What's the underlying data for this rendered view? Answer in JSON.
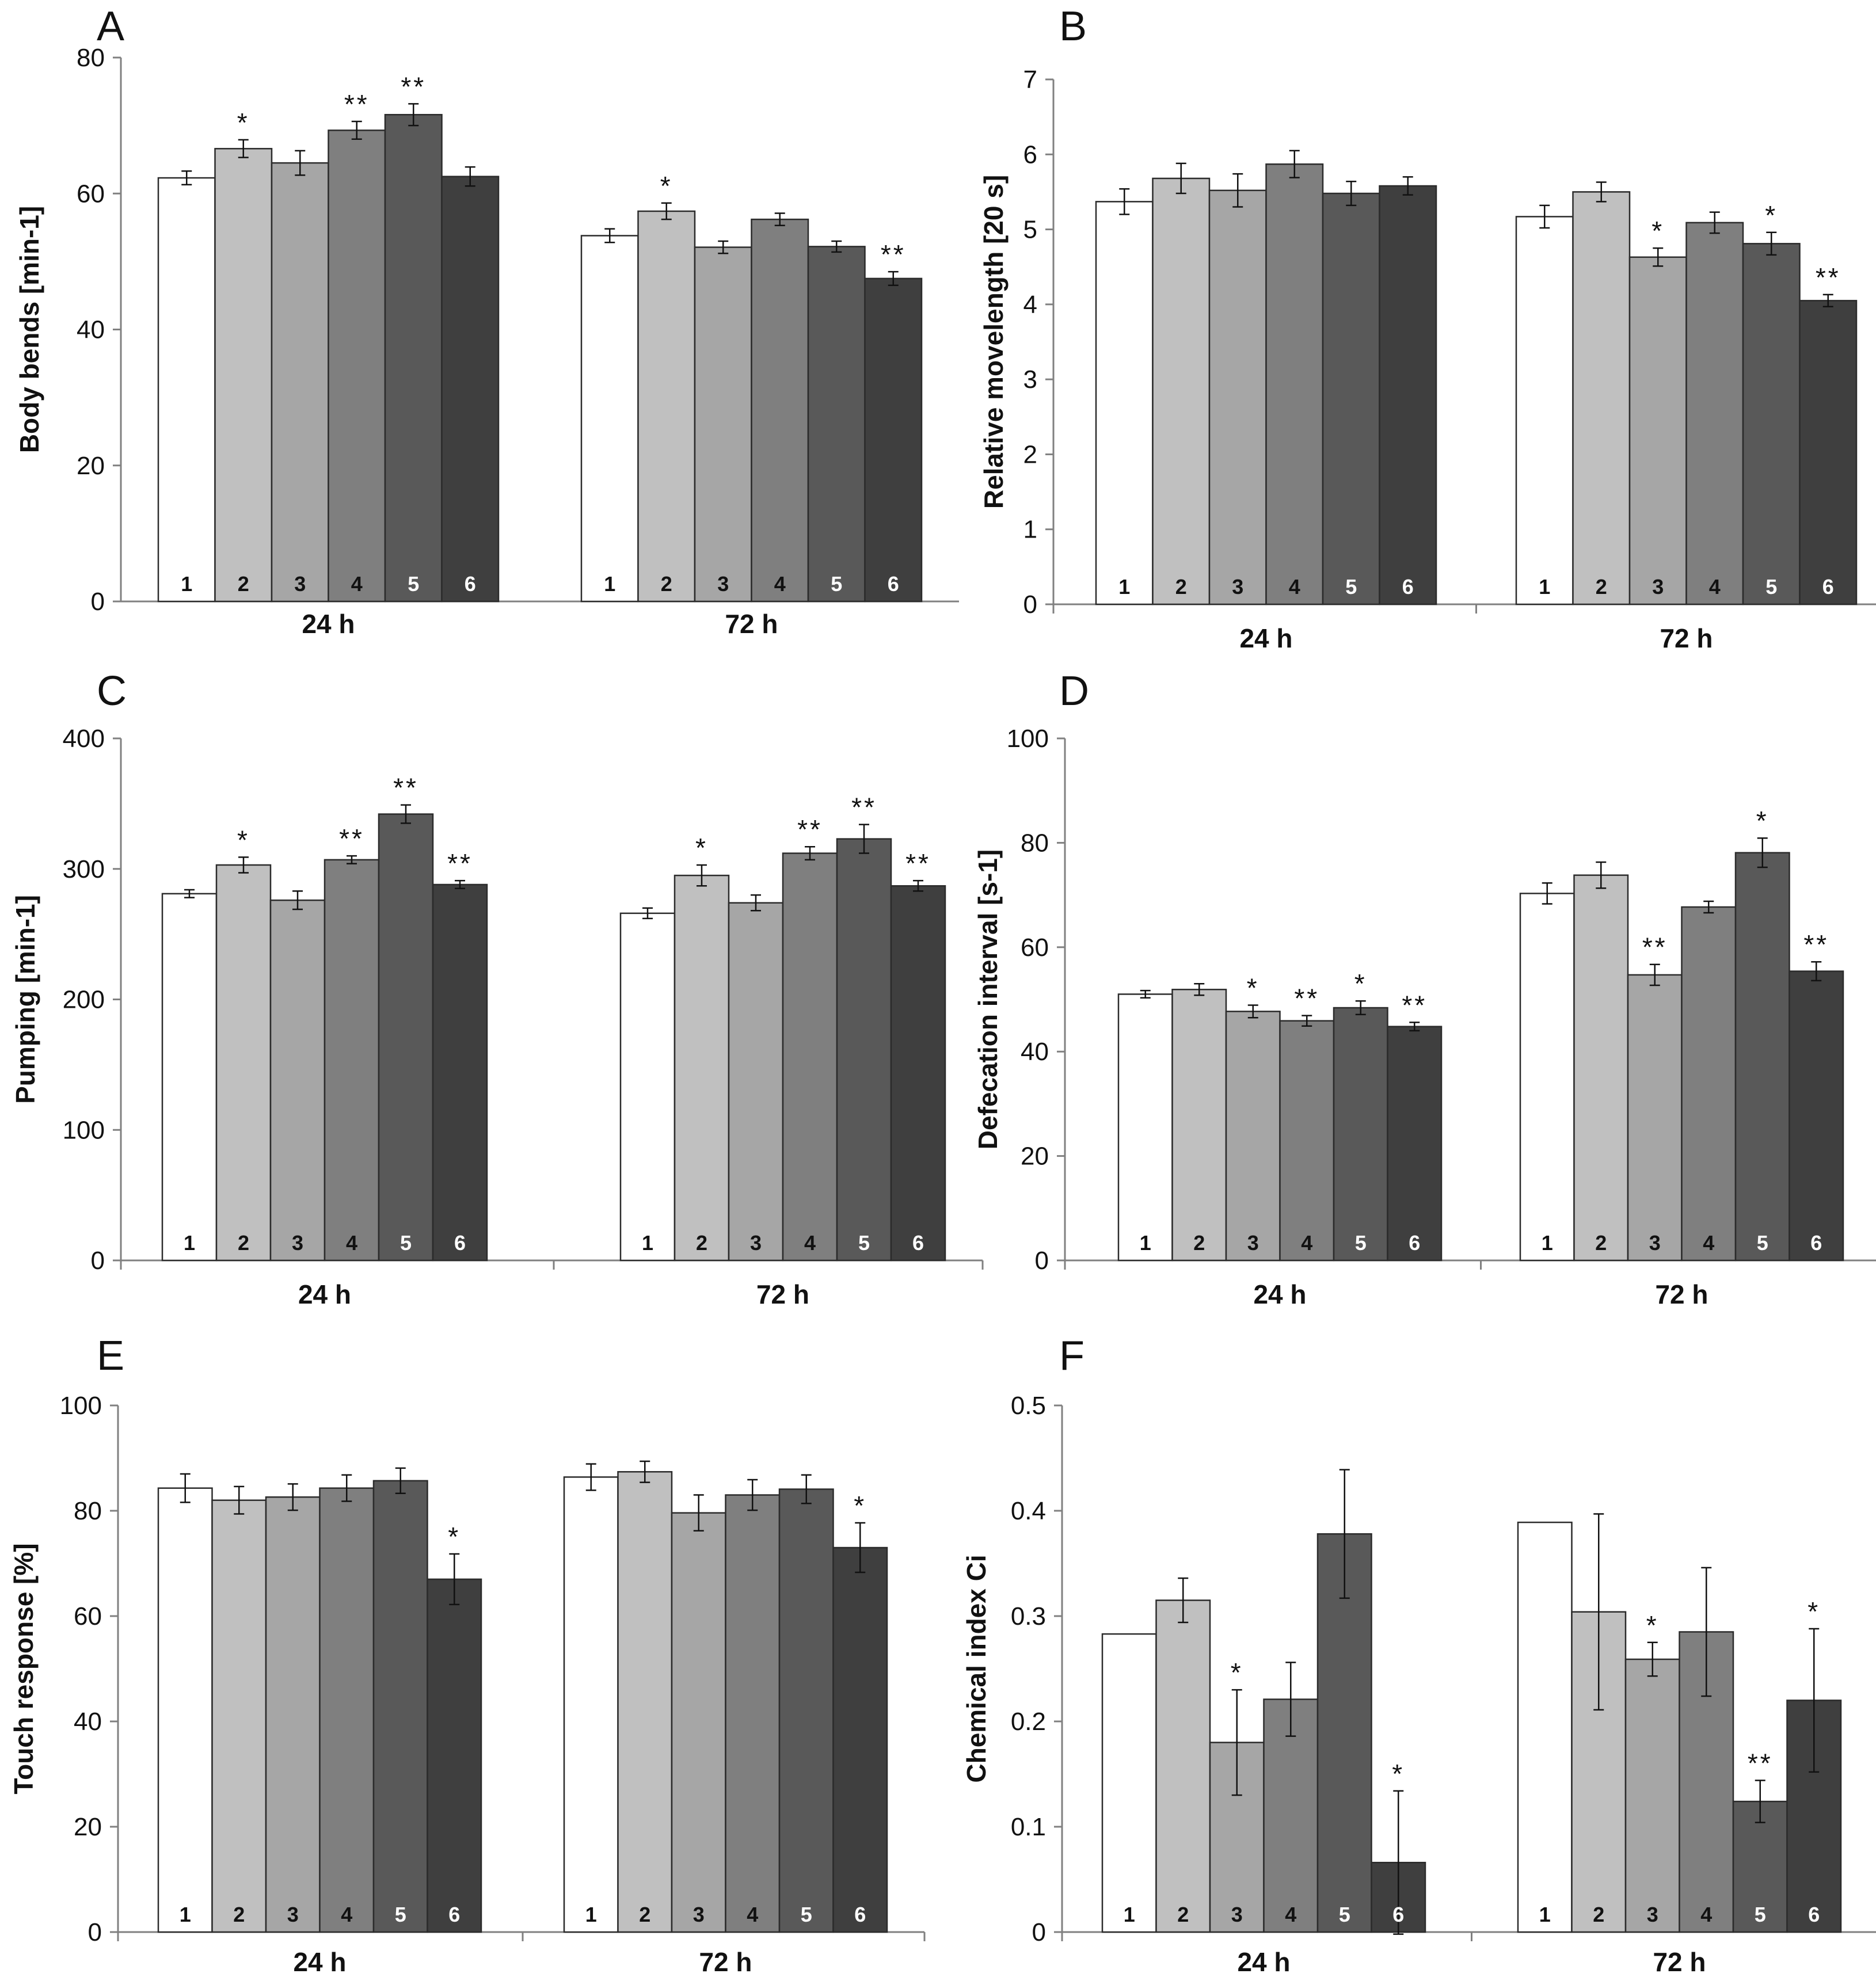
{
  "figure": {
    "bar_colors": [
      "#ffffff",
      "#c0c0c0",
      "#a6a6a6",
      "#7f7f7f",
      "#595959",
      "#3f3f3f"
    ],
    "bar_label_colors": [
      "#111111",
      "#111111",
      "#111111",
      "#111111",
      "#ffffff",
      "#ffffff"
    ],
    "axis_color": "#808080"
  },
  "chart_data": [
    {
      "panel": "A",
      "type": "bar",
      "ylabel": "Body bends [min-1]",
      "ylim": [
        0,
        80
      ],
      "yticks": [
        "0",
        "20",
        "40",
        "60",
        "80"
      ],
      "groups": [
        "24 h",
        "72 h"
      ],
      "categories": [
        "1",
        "2",
        "3",
        "4",
        "5",
        "6"
      ],
      "series": [
        {
          "name": "24 h",
          "values": [
            62.3,
            66.6,
            64.5,
            69.3,
            71.6,
            62.5
          ],
          "errors": [
            1.0,
            1.3,
            1.8,
            1.3,
            1.6,
            1.4
          ],
          "sig": [
            "",
            "*",
            "",
            "**",
            "**",
            ""
          ]
        },
        {
          "name": "72 h",
          "values": [
            53.8,
            57.4,
            52.1,
            56.2,
            52.2,
            47.5
          ],
          "errors": [
            1.0,
            1.2,
            0.9,
            0.9,
            0.8,
            1.0
          ],
          "sig": [
            "",
            "*",
            "",
            "",
            "",
            "**"
          ]
        }
      ]
    },
    {
      "panel": "B",
      "type": "bar",
      "ylabel": "Relative movelength [20 s]",
      "ylim": [
        0,
        7
      ],
      "yticks": [
        "0",
        "1",
        "2",
        "3",
        "4",
        "5",
        "6",
        "7"
      ],
      "groups": [
        "24 h",
        "72 h"
      ],
      "categories": [
        "1",
        "2",
        "3",
        "4",
        "5",
        "6"
      ],
      "series": [
        {
          "name": "24 h",
          "values": [
            5.37,
            5.68,
            5.52,
            5.87,
            5.48,
            5.58
          ],
          "errors": [
            0.17,
            0.2,
            0.22,
            0.18,
            0.16,
            0.12
          ],
          "sig": [
            "",
            "",
            "",
            "",
            "",
            ""
          ]
        },
        {
          "name": "72 h",
          "values": [
            5.17,
            5.5,
            4.63,
            5.09,
            4.81,
            4.05
          ],
          "errors": [
            0.15,
            0.13,
            0.12,
            0.14,
            0.15,
            0.08
          ],
          "sig": [
            "",
            "",
            "*",
            "",
            "*",
            "**"
          ]
        }
      ]
    },
    {
      "panel": "C",
      "type": "bar",
      "ylabel": "Pumping [min-1]",
      "ylim": [
        0,
        400
      ],
      "yticks": [
        "0",
        "100",
        "200",
        "300",
        "400"
      ],
      "groups": [
        "24 h",
        "72 h"
      ],
      "categories": [
        "1",
        "2",
        "3",
        "4",
        "5",
        "6"
      ],
      "series": [
        {
          "name": "24 h",
          "values": [
            281,
            303,
            276,
            307,
            342,
            288
          ],
          "errors": [
            3,
            6,
            7,
            3,
            7,
            3
          ],
          "sig": [
            "",
            "*",
            "",
            "**",
            "**",
            "**"
          ]
        },
        {
          "name": "72 h",
          "values": [
            266,
            295,
            274,
            312,
            323,
            287
          ],
          "errors": [
            4,
            8,
            6,
            5,
            11,
            4
          ],
          "sig": [
            "",
            "*",
            "",
            "**",
            "**",
            "**"
          ]
        }
      ]
    },
    {
      "panel": "D",
      "type": "bar",
      "ylabel": "Defecation interval [s-1]",
      "ylim": [
        0,
        100
      ],
      "yticks": [
        "0",
        "20",
        "40",
        "60",
        "80",
        "100"
      ],
      "groups": [
        "24 h",
        "72 h"
      ],
      "categories": [
        "1",
        "2",
        "3",
        "4",
        "5",
        "6"
      ],
      "series": [
        {
          "name": "24 h",
          "values": [
            51.0,
            51.9,
            47.7,
            45.9,
            48.4,
            44.8
          ],
          "errors": [
            0.7,
            1.1,
            1.2,
            1.0,
            1.3,
            0.8
          ],
          "sig": [
            "",
            "",
            "*",
            "**",
            "*",
            "**"
          ]
        },
        {
          "name": "72 h",
          "values": [
            70.3,
            73.8,
            54.7,
            67.7,
            78.1,
            55.4
          ],
          "errors": [
            2.0,
            2.5,
            2.0,
            1.1,
            2.8,
            1.8
          ],
          "sig": [
            "",
            "",
            "**",
            "",
            "*",
            "**"
          ]
        }
      ]
    },
    {
      "panel": "E",
      "type": "bar",
      "ylabel": "Touch response [%]",
      "ylim": [
        0,
        100
      ],
      "yticks": [
        "0",
        "20",
        "40",
        "60",
        "80",
        "100"
      ],
      "groups": [
        "24 h",
        "72 h"
      ],
      "categories": [
        "1",
        "2",
        "3",
        "4",
        "5",
        "6"
      ],
      "series": [
        {
          "name": "24 h",
          "values": [
            84.3,
            82.0,
            82.6,
            84.3,
            85.7,
            67.0
          ],
          "errors": [
            2.7,
            2.6,
            2.5,
            2.5,
            2.4,
            4.8
          ],
          "sig": [
            "",
            "",
            "",
            "",
            "",
            "*"
          ]
        },
        {
          "name": "72 h",
          "values": [
            86.4,
            87.4,
            79.6,
            83.0,
            84.1,
            73.0
          ],
          "errors": [
            2.5,
            2.0,
            3.4,
            2.9,
            2.7,
            4.7
          ],
          "sig": [
            "",
            "",
            "",
            "",
            "",
            "*"
          ]
        }
      ]
    },
    {
      "panel": "F",
      "type": "bar",
      "ylabel": "Chemical index Ci",
      "ylim": [
        0,
        0.5
      ],
      "yticks": [
        "0",
        "0.1",
        "0.2",
        "0.3",
        "0.4",
        "0.5"
      ],
      "groups": [
        "24 h",
        "72 h"
      ],
      "categories": [
        "1",
        "2",
        "3",
        "4",
        "5",
        "6"
      ],
      "series": [
        {
          "name": "24 h",
          "values": [
            0.283,
            0.315,
            0.18,
            0.221,
            0.378,
            0.066
          ],
          "errors": [
            0.0,
            0.021,
            0.05,
            0.035,
            0.061,
            0.068
          ],
          "sig": [
            "",
            "",
            "*",
            "",
            "",
            "*"
          ]
        },
        {
          "name": "72 h",
          "values": [
            0.389,
            0.304,
            0.259,
            0.285,
            0.124,
            0.22
          ],
          "errors": [
            0.0,
            0.093,
            0.016,
            0.061,
            0.02,
            0.068
          ],
          "sig": [
            "",
            "",
            "*",
            "",
            "**",
            "*"
          ]
        }
      ]
    }
  ]
}
